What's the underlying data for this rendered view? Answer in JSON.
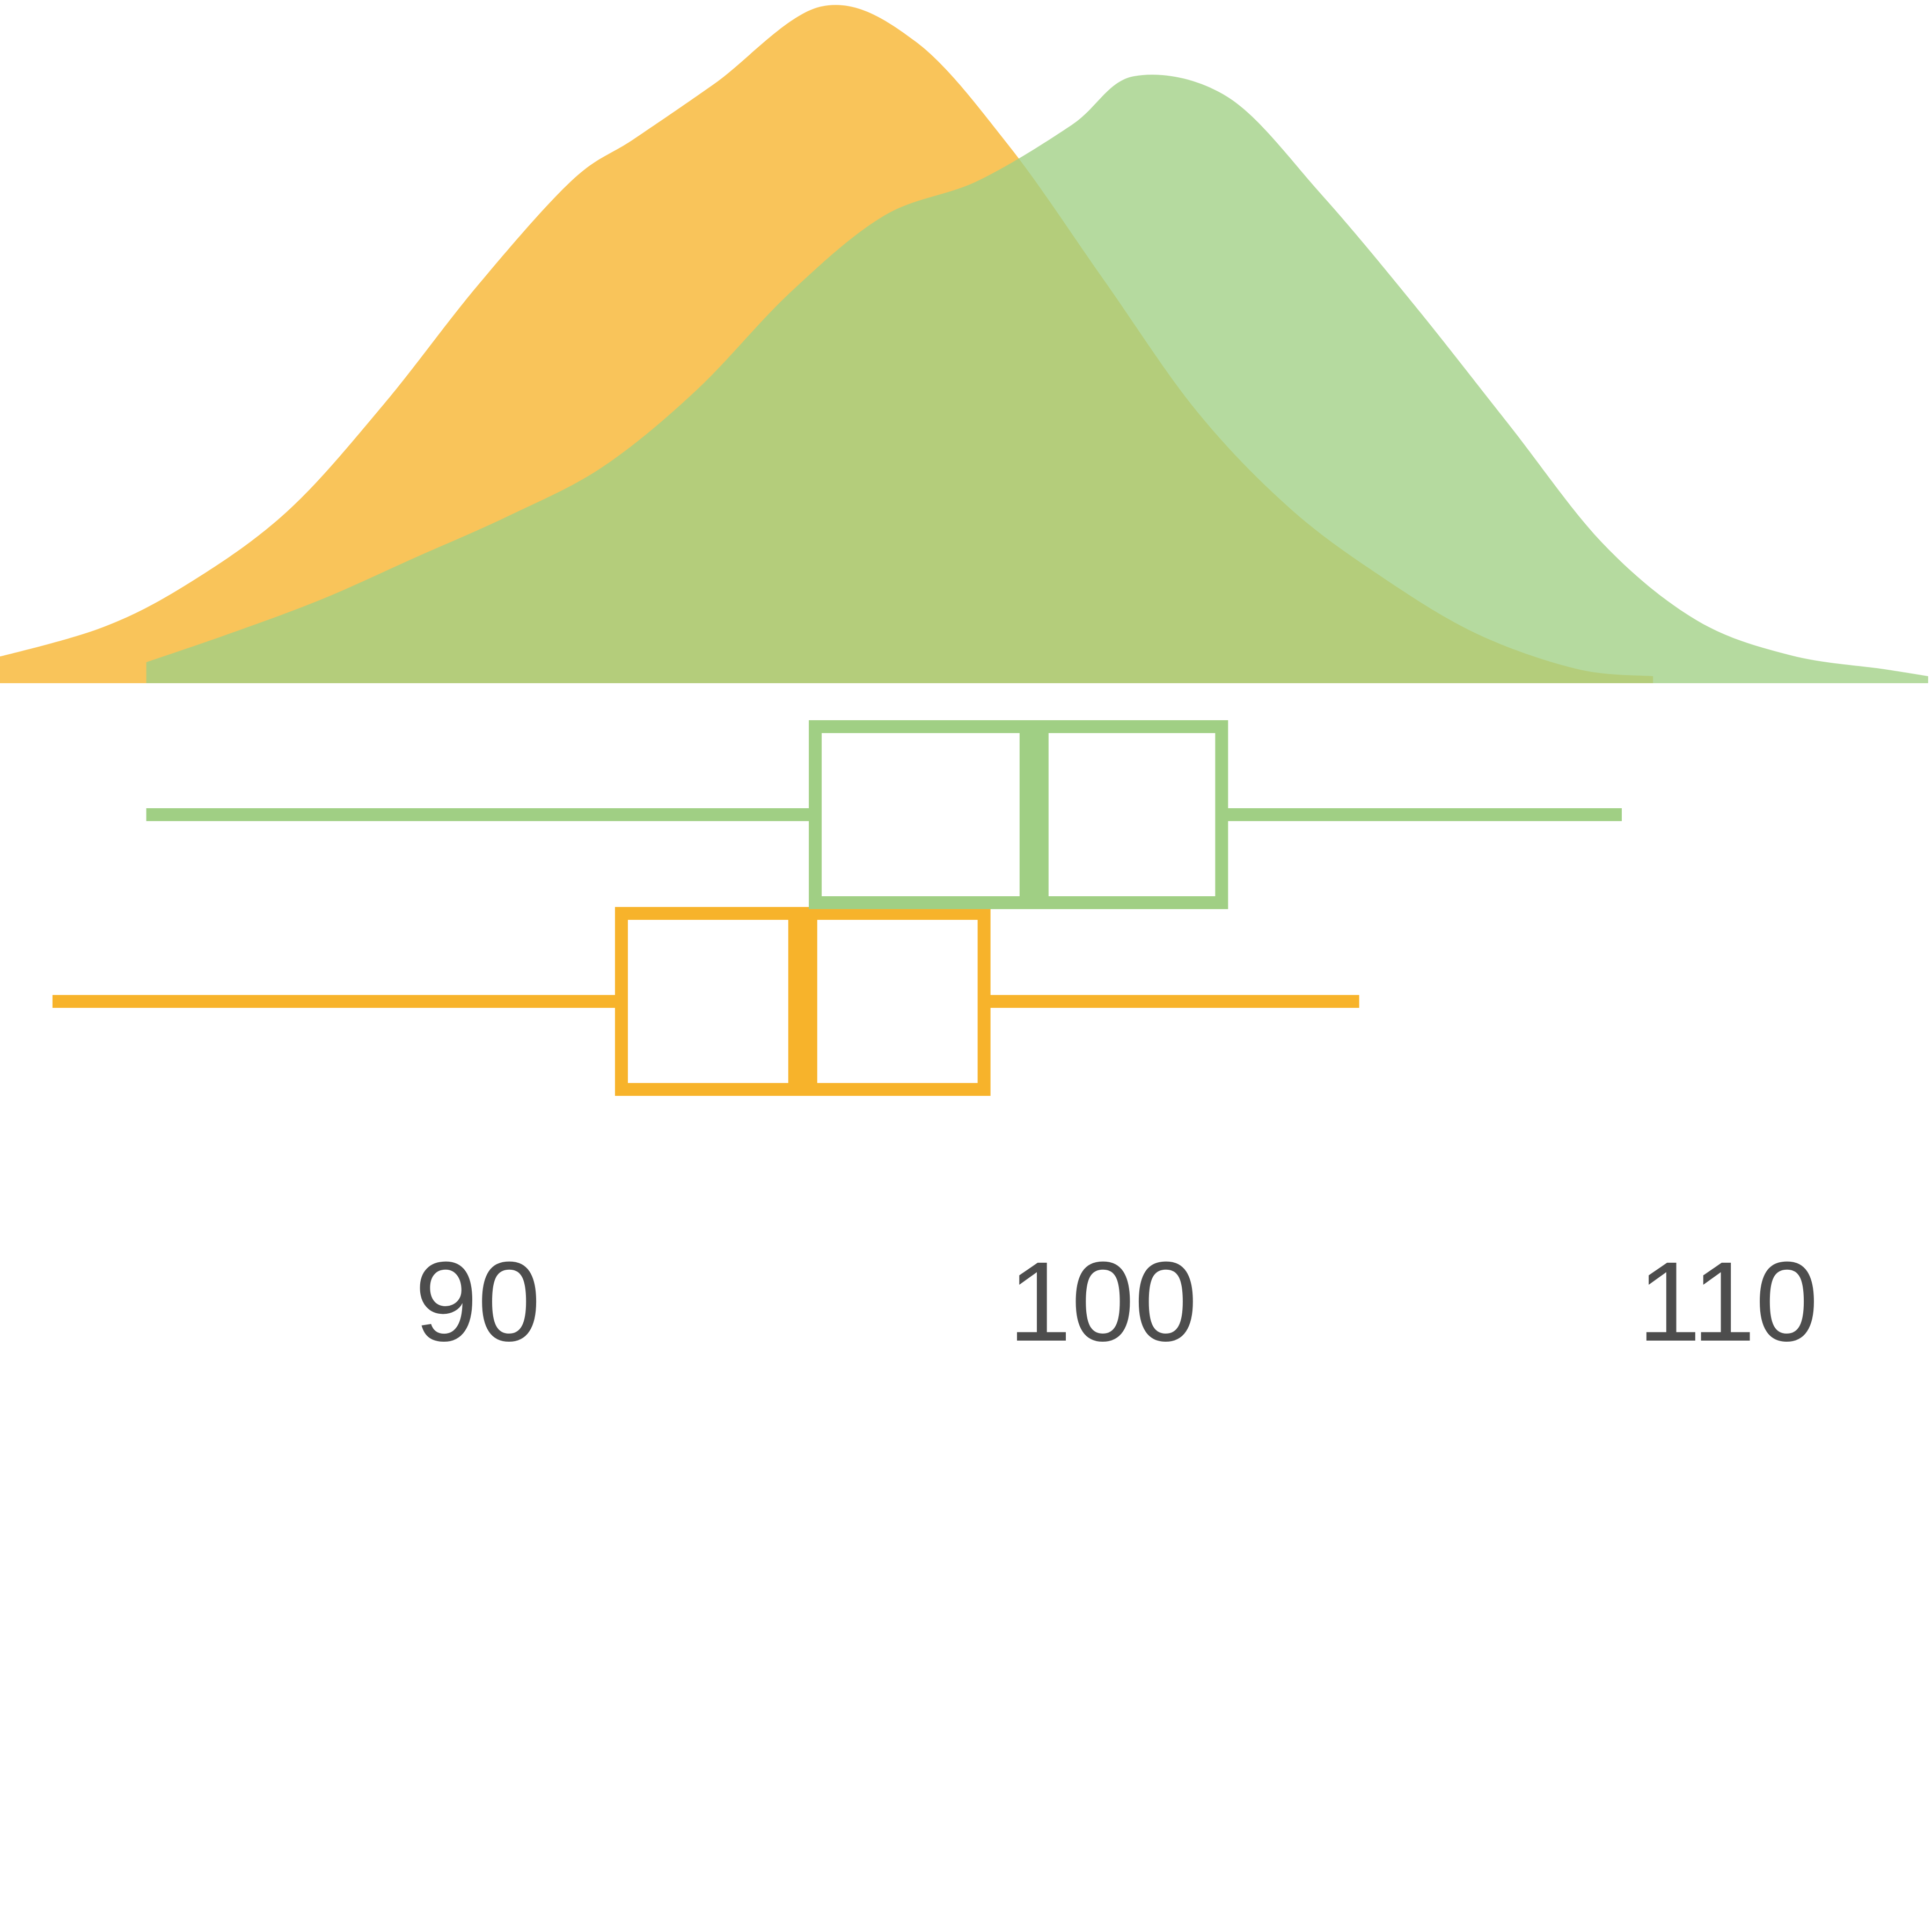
{
  "chart_data": {
    "type": "density-boxplot",
    "title": "",
    "xlabel": "",
    "ylabel": "",
    "x_ticks": [
      90,
      100,
      110
    ],
    "xlim": [
      82.0,
      113.2
    ],
    "grid": false,
    "legend": "none",
    "series": [
      {
        "color": "#F7B32B",
        "box": {
          "whisker_low": 83.2,
          "q1": 92.3,
          "median": 95.2,
          "q3": 98.1,
          "whisker_high": 104.1
        },
        "density": {
          "x": [
            82.0,
            84.0,
            85.5,
            87.0,
            88.5,
            90.0,
            91.5,
            92.5,
            93.8,
            95.5,
            97.0,
            98.5,
            100.0,
            101.5,
            103.0,
            104.5,
            106.0,
            107.6,
            108.8
          ],
          "y": [
            0.03,
            0.08,
            0.15,
            0.25,
            0.4,
            0.57,
            0.72,
            0.78,
            0.86,
            0.97,
            0.92,
            0.77,
            0.58,
            0.39,
            0.25,
            0.15,
            0.07,
            0.02,
            0.01
          ]
        }
      },
      {
        "color": "#A0CF84",
        "box": {
          "whisker_low": 84.7,
          "q1": 95.4,
          "median": 98.9,
          "q3": 101.9,
          "whisker_high": 108.3
        },
        "density": {
          "x": [
            84.7,
            86.0,
            87.5,
            89.0,
            90.5,
            92.0,
            93.5,
            95.0,
            96.5,
            98.0,
            99.5,
            100.5,
            102.0,
            103.5,
            105.0,
            106.5,
            108.0,
            109.5,
            111.0,
            112.5,
            113.2
          ],
          "y": [
            0.03,
            0.07,
            0.12,
            0.18,
            0.24,
            0.31,
            0.42,
            0.56,
            0.67,
            0.72,
            0.8,
            0.87,
            0.84,
            0.7,
            0.54,
            0.37,
            0.2,
            0.09,
            0.04,
            0.02,
            0.01
          ]
        }
      }
    ]
  }
}
